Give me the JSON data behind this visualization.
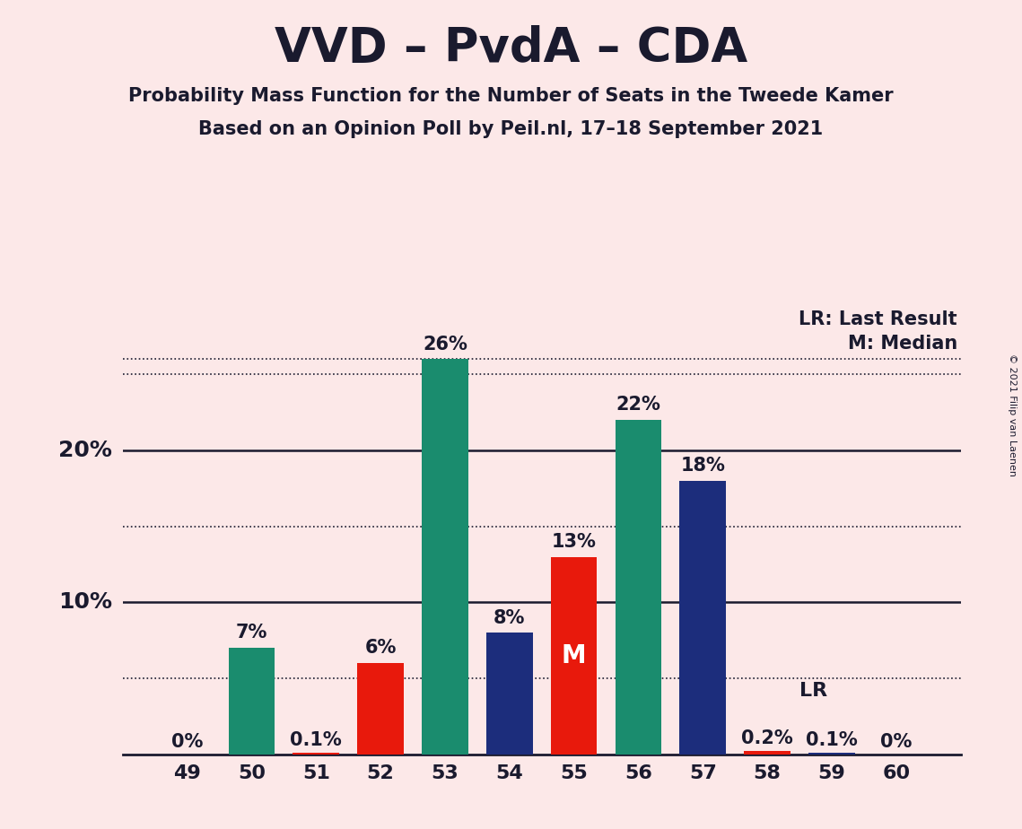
{
  "title": "VVD – PvdA – CDA",
  "subtitle1": "Probability Mass Function for the Number of Seats in the Tweede Kamer",
  "subtitle2": "Based on an Opinion Poll by Peil.nl, 17–18 September 2021",
  "copyright": "© 2021 Filip van Laenen",
  "seats": [
    49,
    50,
    51,
    52,
    53,
    54,
    55,
    56,
    57,
    58,
    59,
    60
  ],
  "values": [
    0.0,
    7.0,
    0.1,
    6.0,
    26.0,
    8.0,
    13.0,
    22.0,
    18.0,
    0.2,
    0.1,
    0.0
  ],
  "bar_colors": [
    "#1a8c6e",
    "#1a8c6e",
    "#e8190c",
    "#e8190c",
    "#1a8c6e",
    "#1c2d7c",
    "#e8190c",
    "#1a8c6e",
    "#1c2d7c",
    "#e8190c",
    "#1c2d7c",
    "#1c2d7c"
  ],
  "labels": [
    "0%",
    "7%",
    "0.1%",
    "6%",
    "26%",
    "8%",
    "13%",
    "22%",
    "18%",
    "0.2%",
    "0.1%",
    "0%"
  ],
  "label_colors": [
    "#1a1a2e",
    "#1a1a2e",
    "#1a1a2e",
    "#1a1a2e",
    "#1a1a2e",
    "#1a1a2e",
    "#ffffff",
    "#1a1a2e",
    "#1a1a2e",
    "#1a1a2e",
    "#1a1a2e",
    "#1a1a2e"
  ],
  "median_seat": 55,
  "lr_seat": 58,
  "background_color": "#fce8e8",
  "text_color": "#1a1a2e",
  "legend_lr": "LR: Last Result",
  "legend_m": "M: Median",
  "lr_label": "LR",
  "m_label": "M",
  "solid_lines": [
    10,
    20
  ],
  "dotted_lines": [
    5,
    15,
    25,
    26
  ],
  "ytick_positions": [
    10,
    20
  ],
  "ytick_labels": [
    "10%",
    "20%"
  ],
  "ylim": [
    0,
    30
  ],
  "xlim": [
    48.0,
    61.0
  ],
  "bar_width": 0.72
}
